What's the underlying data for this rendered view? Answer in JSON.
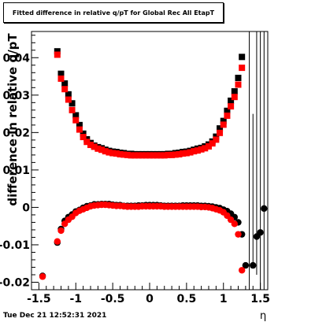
{
  "chart_data": {
    "type": "scatter",
    "title": "Fitted difference in relative q/pT for Global Rec All EtapT",
    "xlabel": "η",
    "ylabel": "difference in relative q/pT",
    "xlim": [
      -1.6,
      1.6
    ],
    "ylim": [
      -0.022,
      0.047
    ],
    "grid": false,
    "x_ticks": [
      "-1.5",
      "-1",
      "-0.5",
      "0",
      "0.5",
      "1",
      "1.5"
    ],
    "y_ticks": [
      "-0.02",
      "-0.01",
      "0",
      "0.01",
      "0.02",
      "0.03",
      "0.04"
    ],
    "series": [
      {
        "marker": "square",
        "color": "#000000",
        "x": [
          -1.25,
          -1.2,
          -1.15,
          -1.1,
          -1.05,
          -1.0,
          -0.95,
          -0.9,
          -0.85,
          -0.8,
          -0.75,
          -0.7,
          -0.65,
          -0.6,
          -0.55,
          -0.5,
          -0.45,
          -0.4,
          -0.35,
          -0.3,
          -0.25,
          -0.2,
          -0.15,
          -0.1,
          -0.05,
          0.0,
          0.05,
          0.1,
          0.15,
          0.2,
          0.25,
          0.3,
          0.35,
          0.4,
          0.45,
          0.5,
          0.55,
          0.6,
          0.65,
          0.7,
          0.75,
          0.8,
          0.85,
          0.9,
          0.95,
          1.0,
          1.05,
          1.1,
          1.15,
          1.2,
          1.25
        ],
        "y": [
          0.0417,
          0.0357,
          0.0331,
          0.0302,
          0.0278,
          0.0246,
          0.022,
          0.0197,
          0.0182,
          0.0172,
          0.0165,
          0.0161,
          0.0158,
          0.0154,
          0.0151,
          0.0149,
          0.0148,
          0.0146,
          0.0145,
          0.0143,
          0.0143,
          0.0142,
          0.0142,
          0.0142,
          0.0142,
          0.0142,
          0.0142,
          0.0142,
          0.0142,
          0.0142,
          0.0143,
          0.0143,
          0.0145,
          0.0146,
          0.0148,
          0.0149,
          0.0151,
          0.0154,
          0.0157,
          0.0159,
          0.0163,
          0.0168,
          0.0176,
          0.0189,
          0.0211,
          0.0231,
          0.0258,
          0.0285,
          0.031,
          0.0346,
          0.0402
        ]
      },
      {
        "marker": "square",
        "color": "#ff0000",
        "x": [
          -1.25,
          -1.2,
          -1.15,
          -1.1,
          -1.05,
          -1.0,
          -0.95,
          -0.9,
          -0.85,
          -0.8,
          -0.75,
          -0.7,
          -0.65,
          -0.6,
          -0.55,
          -0.5,
          -0.45,
          -0.4,
          -0.35,
          -0.3,
          -0.25,
          -0.2,
          -0.15,
          -0.1,
          -0.05,
          0.0,
          0.05,
          0.1,
          0.15,
          0.2,
          0.25,
          0.3,
          0.35,
          0.4,
          0.45,
          0.5,
          0.55,
          0.6,
          0.65,
          0.7,
          0.75,
          0.8,
          0.85,
          0.9,
          0.95,
          1.0,
          1.05,
          1.1,
          1.15,
          1.2,
          1.25
        ],
        "y": [
          0.0408,
          0.0344,
          0.0316,
          0.0288,
          0.026,
          0.0233,
          0.0208,
          0.0188,
          0.0175,
          0.0167,
          0.0162,
          0.0157,
          0.0154,
          0.015,
          0.0147,
          0.0145,
          0.0144,
          0.0142,
          0.0141,
          0.014,
          0.0139,
          0.0139,
          0.0139,
          0.0139,
          0.0139,
          0.0139,
          0.0139,
          0.0139,
          0.0139,
          0.0139,
          0.014,
          0.014,
          0.0141,
          0.0142,
          0.0144,
          0.0145,
          0.0147,
          0.015,
          0.0152,
          0.0155,
          0.0158,
          0.0163,
          0.0171,
          0.0181,
          0.0199,
          0.0221,
          0.0245,
          0.027,
          0.0295,
          0.0328,
          0.0373
        ]
      },
      {
        "marker": "circle",
        "color": "#000000",
        "x": [
          -1.45,
          -1.25,
          -1.2,
          -1.15,
          -1.1,
          -1.05,
          -1.0,
          -0.95,
          -0.9,
          -0.85,
          -0.8,
          -0.75,
          -0.7,
          -0.65,
          -0.6,
          -0.55,
          -0.5,
          -0.45,
          -0.4,
          -0.35,
          -0.3,
          -0.25,
          -0.2,
          -0.15,
          -0.1,
          -0.05,
          0.0,
          0.05,
          0.1,
          0.15,
          0.2,
          0.25,
          0.3,
          0.35,
          0.4,
          0.45,
          0.5,
          0.55,
          0.6,
          0.65,
          0.7,
          0.75,
          0.8,
          0.85,
          0.9,
          0.95,
          1.0,
          1.05,
          1.1,
          1.15,
          1.2,
          1.25,
          1.3,
          1.4,
          1.45,
          1.5,
          1.55
        ],
        "y": [
          -0.0183,
          -0.0094,
          -0.0058,
          -0.0036,
          -0.0026,
          -0.0019,
          -0.0011,
          -0.0007,
          -0.0001,
          0.0003,
          0.0005,
          0.0008,
          0.0008,
          0.0009,
          0.0009,
          0.0009,
          0.0007,
          0.0006,
          0.0006,
          0.0004,
          0.0004,
          0.0004,
          0.0004,
          0.0005,
          0.0005,
          0.0006,
          0.0006,
          0.0006,
          0.0006,
          0.0005,
          0.0004,
          0.0004,
          0.0004,
          0.0004,
          0.0004,
          0.0005,
          0.0005,
          0.0005,
          0.0005,
          0.0005,
          0.0004,
          0.0004,
          0.0003,
          0.0002,
          0.0,
          -0.0002,
          -0.0006,
          -0.001,
          -0.0017,
          -0.0026,
          -0.004,
          -0.0072,
          -0.0155,
          -0.0155,
          -0.0078,
          -0.0067,
          -0.0003
        ]
      },
      {
        "marker": "circle",
        "color": "#ff0000",
        "x": [
          -1.45,
          -1.25,
          -1.2,
          -1.15,
          -1.1,
          -1.05,
          -1.0,
          -0.95,
          -0.9,
          -0.85,
          -0.8,
          -0.75,
          -0.7,
          -0.65,
          -0.6,
          -0.55,
          -0.5,
          -0.45,
          -0.4,
          -0.35,
          -0.3,
          -0.25,
          -0.2,
          -0.15,
          -0.1,
          -0.05,
          0.0,
          0.05,
          0.1,
          0.15,
          0.2,
          0.25,
          0.3,
          0.35,
          0.4,
          0.45,
          0.5,
          0.55,
          0.6,
          0.65,
          0.7,
          0.75,
          0.8,
          0.85,
          0.9,
          0.95,
          1.0,
          1.05,
          1.1,
          1.15,
          1.2,
          1.25
        ],
        "y": [
          -0.0185,
          -0.0091,
          -0.0062,
          -0.0044,
          -0.0033,
          -0.0025,
          -0.0015,
          -0.0009,
          -0.0005,
          -0.0001,
          0.0003,
          0.0005,
          0.0006,
          0.0007,
          0.0007,
          0.0006,
          0.0005,
          0.0004,
          0.0004,
          0.0003,
          0.0002,
          0.0002,
          0.0002,
          0.0002,
          0.0003,
          0.0003,
          0.0003,
          0.0003,
          0.0003,
          0.0003,
          0.0002,
          0.0002,
          0.0002,
          0.0002,
          0.0002,
          0.0002,
          0.0002,
          0.0002,
          0.0002,
          0.0002,
          0.0001,
          0.0001,
          0.0,
          -0.0002,
          -0.0005,
          -0.0008,
          -0.0013,
          -0.0022,
          -0.0033,
          -0.0044,
          -0.0072,
          -0.0168
        ]
      }
    ],
    "error_bars": [
      {
        "x": 1.35,
        "ylo": -0.022,
        "yhi": 0.047
      },
      {
        "x": 1.4,
        "ylo": -0.0155,
        "yhi": 0.025
      },
      {
        "x": 1.45,
        "ylo": -0.018,
        "yhi": 0.047
      },
      {
        "x": 1.5,
        "ylo": -0.022,
        "yhi": 0.047
      },
      {
        "x": 1.55,
        "ylo": -0.022,
        "yhi": 0.047
      }
    ]
  },
  "footer": {
    "timestamp": "Tue Dec 21 12:52:31 2021"
  }
}
